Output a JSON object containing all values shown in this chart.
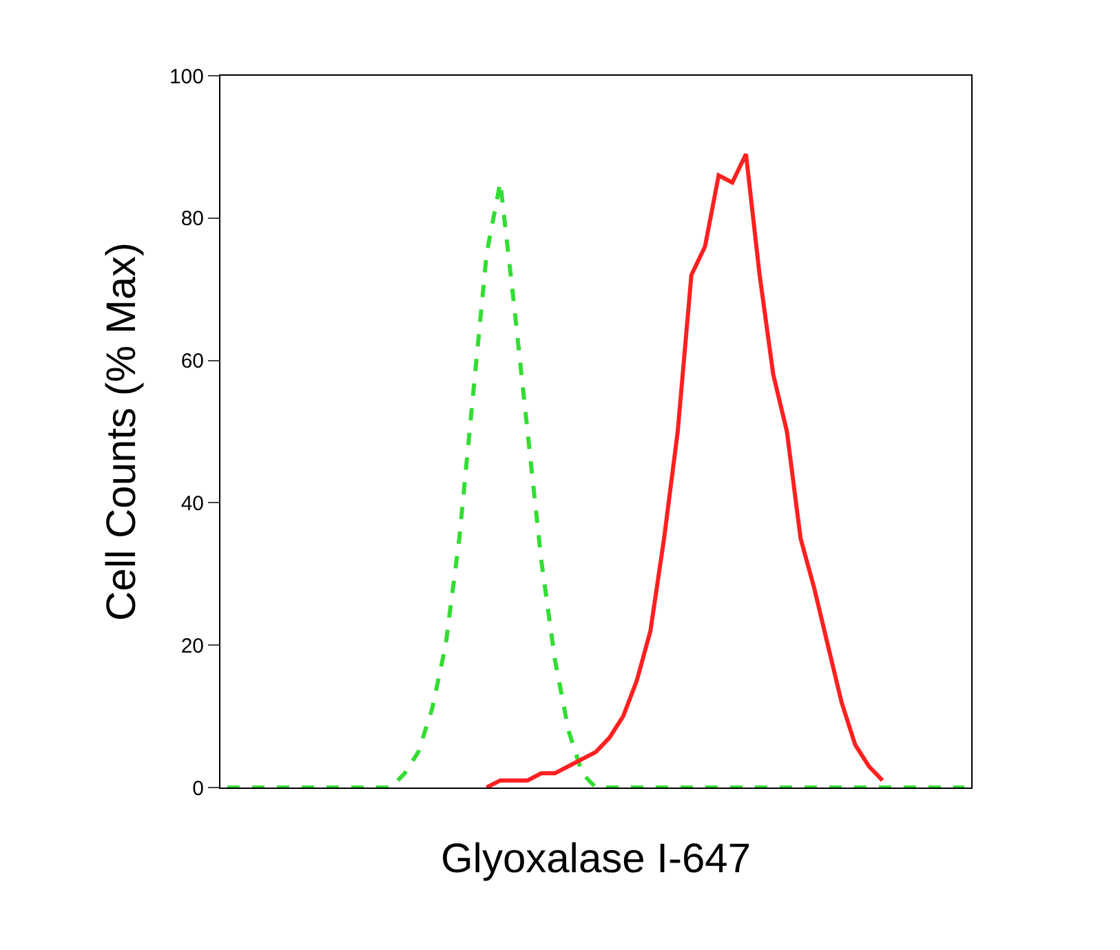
{
  "chart_data": {
    "type": "line",
    "xlabel": "Glyoxalase I-647",
    "ylabel": "Cell Counts (% Max)",
    "categories": [
      null,
      null,
      null,
      null,
      null,
      null,
      null,
      null,
      null,
      null,
      null,
      null,
      null,
      null,
      null,
      null,
      null,
      null,
      null,
      null,
      null,
      null,
      null,
      null,
      null,
      null,
      null,
      null,
      null,
      null,
      null,
      null,
      null,
      null,
      null,
      null,
      null,
      null,
      null,
      null,
      null,
      null,
      null,
      null,
      null,
      null,
      null,
      null,
      null,
      null,
      null,
      null,
      null,
      null,
      null
    ],
    "series": [
      {
        "color": "#33dd33",
        "line_style": "dashed",
        "values": [
          0,
          0,
          0,
          0,
          0,
          0,
          0,
          0,
          0,
          0,
          0,
          0,
          0,
          2,
          5,
          11,
          20,
          35,
          55,
          75,
          85,
          68,
          50,
          32,
          18,
          8,
          2,
          0,
          0,
          0,
          0,
          0,
          0,
          0,
          0,
          0,
          0,
          0,
          0,
          0,
          0,
          0,
          0,
          0,
          0,
          0,
          0,
          0,
          0,
          0,
          0,
          0,
          0,
          0,
          0
        ]
      },
      {
        "color": "#ff2020",
        "line_style": "solid",
        "values": [
          null,
          null,
          null,
          null,
          null,
          null,
          null,
          null,
          null,
          null,
          null,
          null,
          null,
          null,
          null,
          null,
          null,
          null,
          null,
          0,
          1,
          1,
          1,
          2,
          2,
          3,
          4,
          5,
          7,
          10,
          15,
          22,
          35,
          50,
          72,
          76,
          86,
          85,
          89,
          72,
          58,
          50,
          35,
          28,
          20,
          12,
          6,
          3,
          1,
          null,
          null,
          null,
          null,
          null,
          null
        ]
      }
    ],
    "ylim": [
      0,
      100
    ],
    "yticks": [
      0,
      20,
      40,
      60,
      80,
      100
    ],
    "tick_labels": "y"
  }
}
